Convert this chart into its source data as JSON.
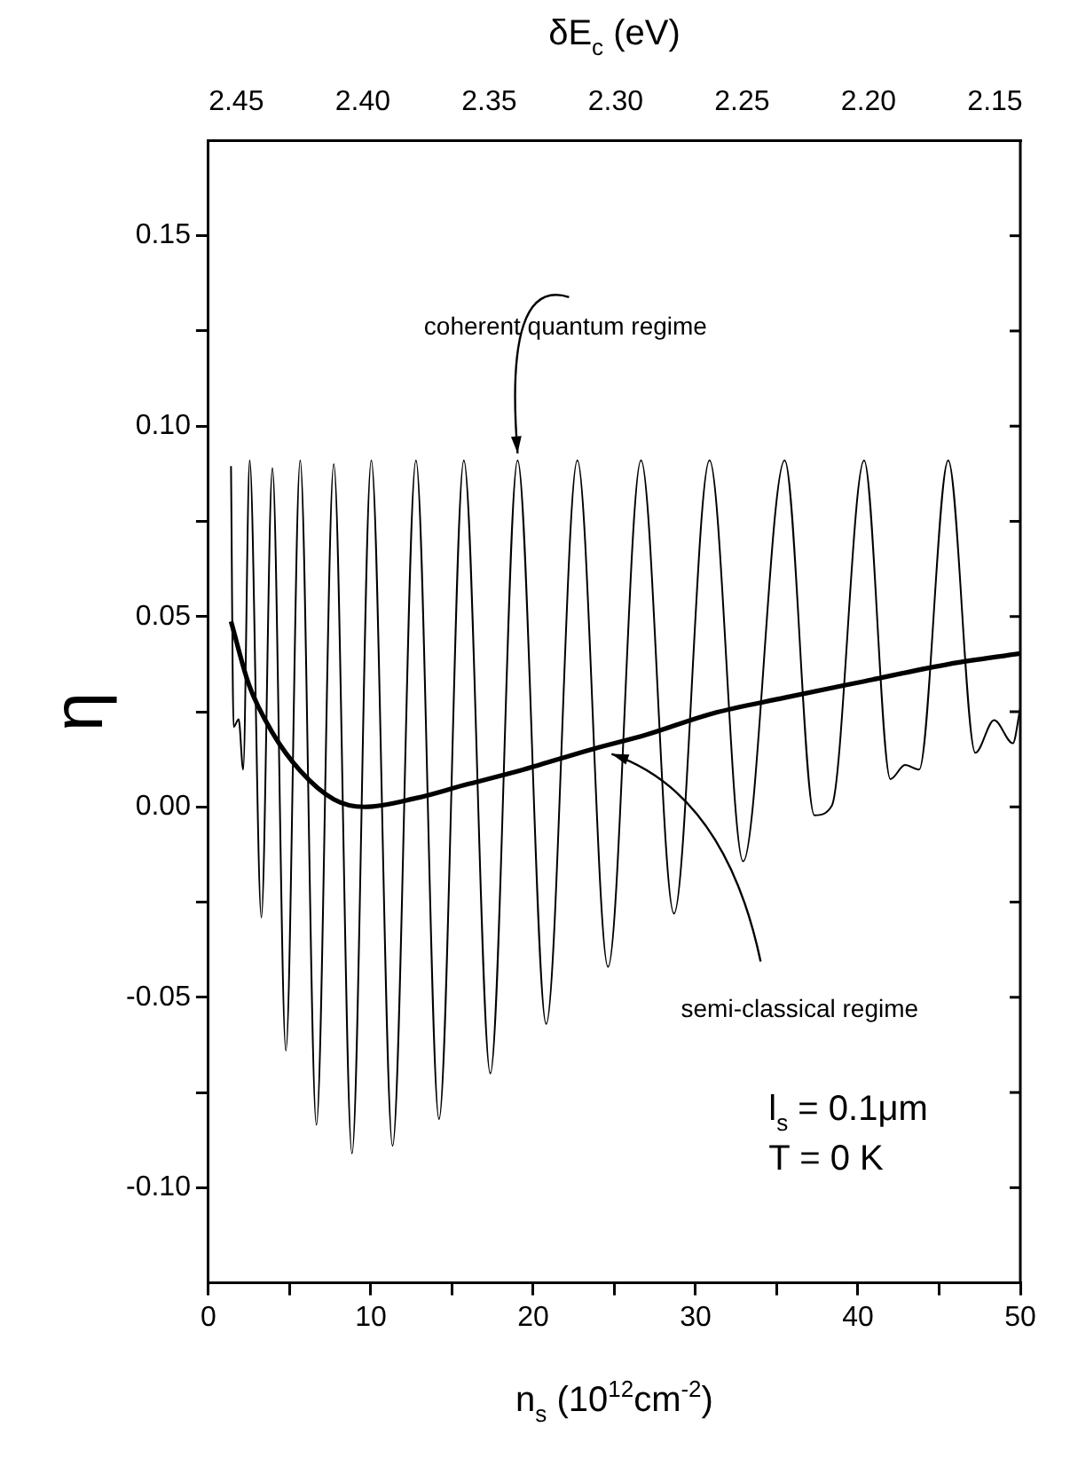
{
  "chart_data": {
    "type": "line",
    "xlabel": "n$_{s}$ (10$^{12}$cm$^{-2}$)",
    "ylabel": "η",
    "x2label": "δE$_{c}$ (eV)",
    "xlim": [
      0,
      50
    ],
    "xticks": [
      0,
      10,
      20,
      30,
      40,
      50,
      {
        "value": 5,
        "label": null
      },
      {
        "value": 15,
        "label": null
      },
      {
        "value": 25,
        "label": null
      },
      {
        "value": 35,
        "label": null
      },
      {
        "value": 45,
        "label": null
      }
    ],
    "x2lim": [
      2.461,
      2.14
    ],
    "x2ticks": [
      2.45,
      {
        "value": 2.4,
        "label": "2.40"
      },
      2.35,
      {
        "value": 2.3,
        "label": "2.30"
      },
      2.25,
      {
        "value": 2.2,
        "label": "2.20"
      },
      2.15
    ],
    "ylim": [
      -0.125,
      0.175
    ],
    "yticks": [
      0.15,
      {
        "value": 0.1,
        "label": "0.10"
      },
      0.05,
      {
        "value": 0,
        "label": "0.00"
      },
      -0.05,
      {
        "value": -0.1,
        "label": "-0.10"
      },
      {
        "value": 0.125,
        "label": null
      },
      {
        "value": 0.075,
        "label": null
      },
      {
        "value": 0.025,
        "label": null
      },
      {
        "value": -0.025,
        "label": null
      },
      {
        "value": -0.075,
        "label": null
      }
    ],
    "grid": false,
    "legend": false,
    "series": [
      {
        "type": "line",
        "color": "#000000",
        "x": [
          1.39,
          1.55,
          1.86,
          2.14,
          2.54,
          3.26,
          3.94,
          4.77,
          5.65,
          6.65,
          7.72,
          8.84,
          10.03,
          11.34,
          12.78,
          14.2,
          15.73,
          17.36,
          19.04,
          20.8,
          22.72,
          24.61,
          26.64,
          28.67,
          30.86,
          32.93,
          35.49,
          37.32,
          38.39,
          40.38,
          42.0,
          42.9,
          43.77,
          45.56,
          47.23,
          48.39,
          49.54,
          50
        ],
        "values": [
          0.0895,
          0.021,
          0.023,
          0.0098,
          0.091,
          -0.029,
          0.089,
          -0.064,
          0.091,
          -0.0835,
          0.09,
          -0.091,
          0.091,
          -0.089,
          0.091,
          -0.082,
          0.091,
          -0.07,
          0.091,
          -0.057,
          0.091,
          -0.042,
          0.091,
          -0.028,
          0.091,
          -0.0143,
          0.091,
          -0.0022,
          0.0003,
          0.091,
          0.0073,
          0.011,
          0.0098,
          0.091,
          0.0142,
          0.0228,
          0.0167,
          0.026
        ]
      },
      {
        "type": "line",
        "color": "#000000",
        "x": [
          1.39,
          2.5,
          3.94,
          5.65,
          7.72,
          9.6,
          12.78,
          15.73,
          19.0,
          23.5,
          27,
          31,
          35.5,
          40.4,
          45.6,
          50
        ],
        "values": [
          0.0487,
          0.032,
          0.0195,
          0.0095,
          0.002,
          0.0,
          0.0023,
          0.0057,
          0.0093,
          0.015,
          0.019,
          0.0245,
          0.0287,
          0.033,
          0.0375,
          0.0403
        ]
      }
    ],
    "annotations": [
      {
        "text": "coherent quantum regime",
        "x": 19.04,
        "y": 0.091
      },
      {
        "text": "semi-classical regime",
        "x": 24.5,
        "y": 0.0153
      },
      "l$_{s}$ = 0.1μm",
      "T = 0 K"
    ]
  }
}
